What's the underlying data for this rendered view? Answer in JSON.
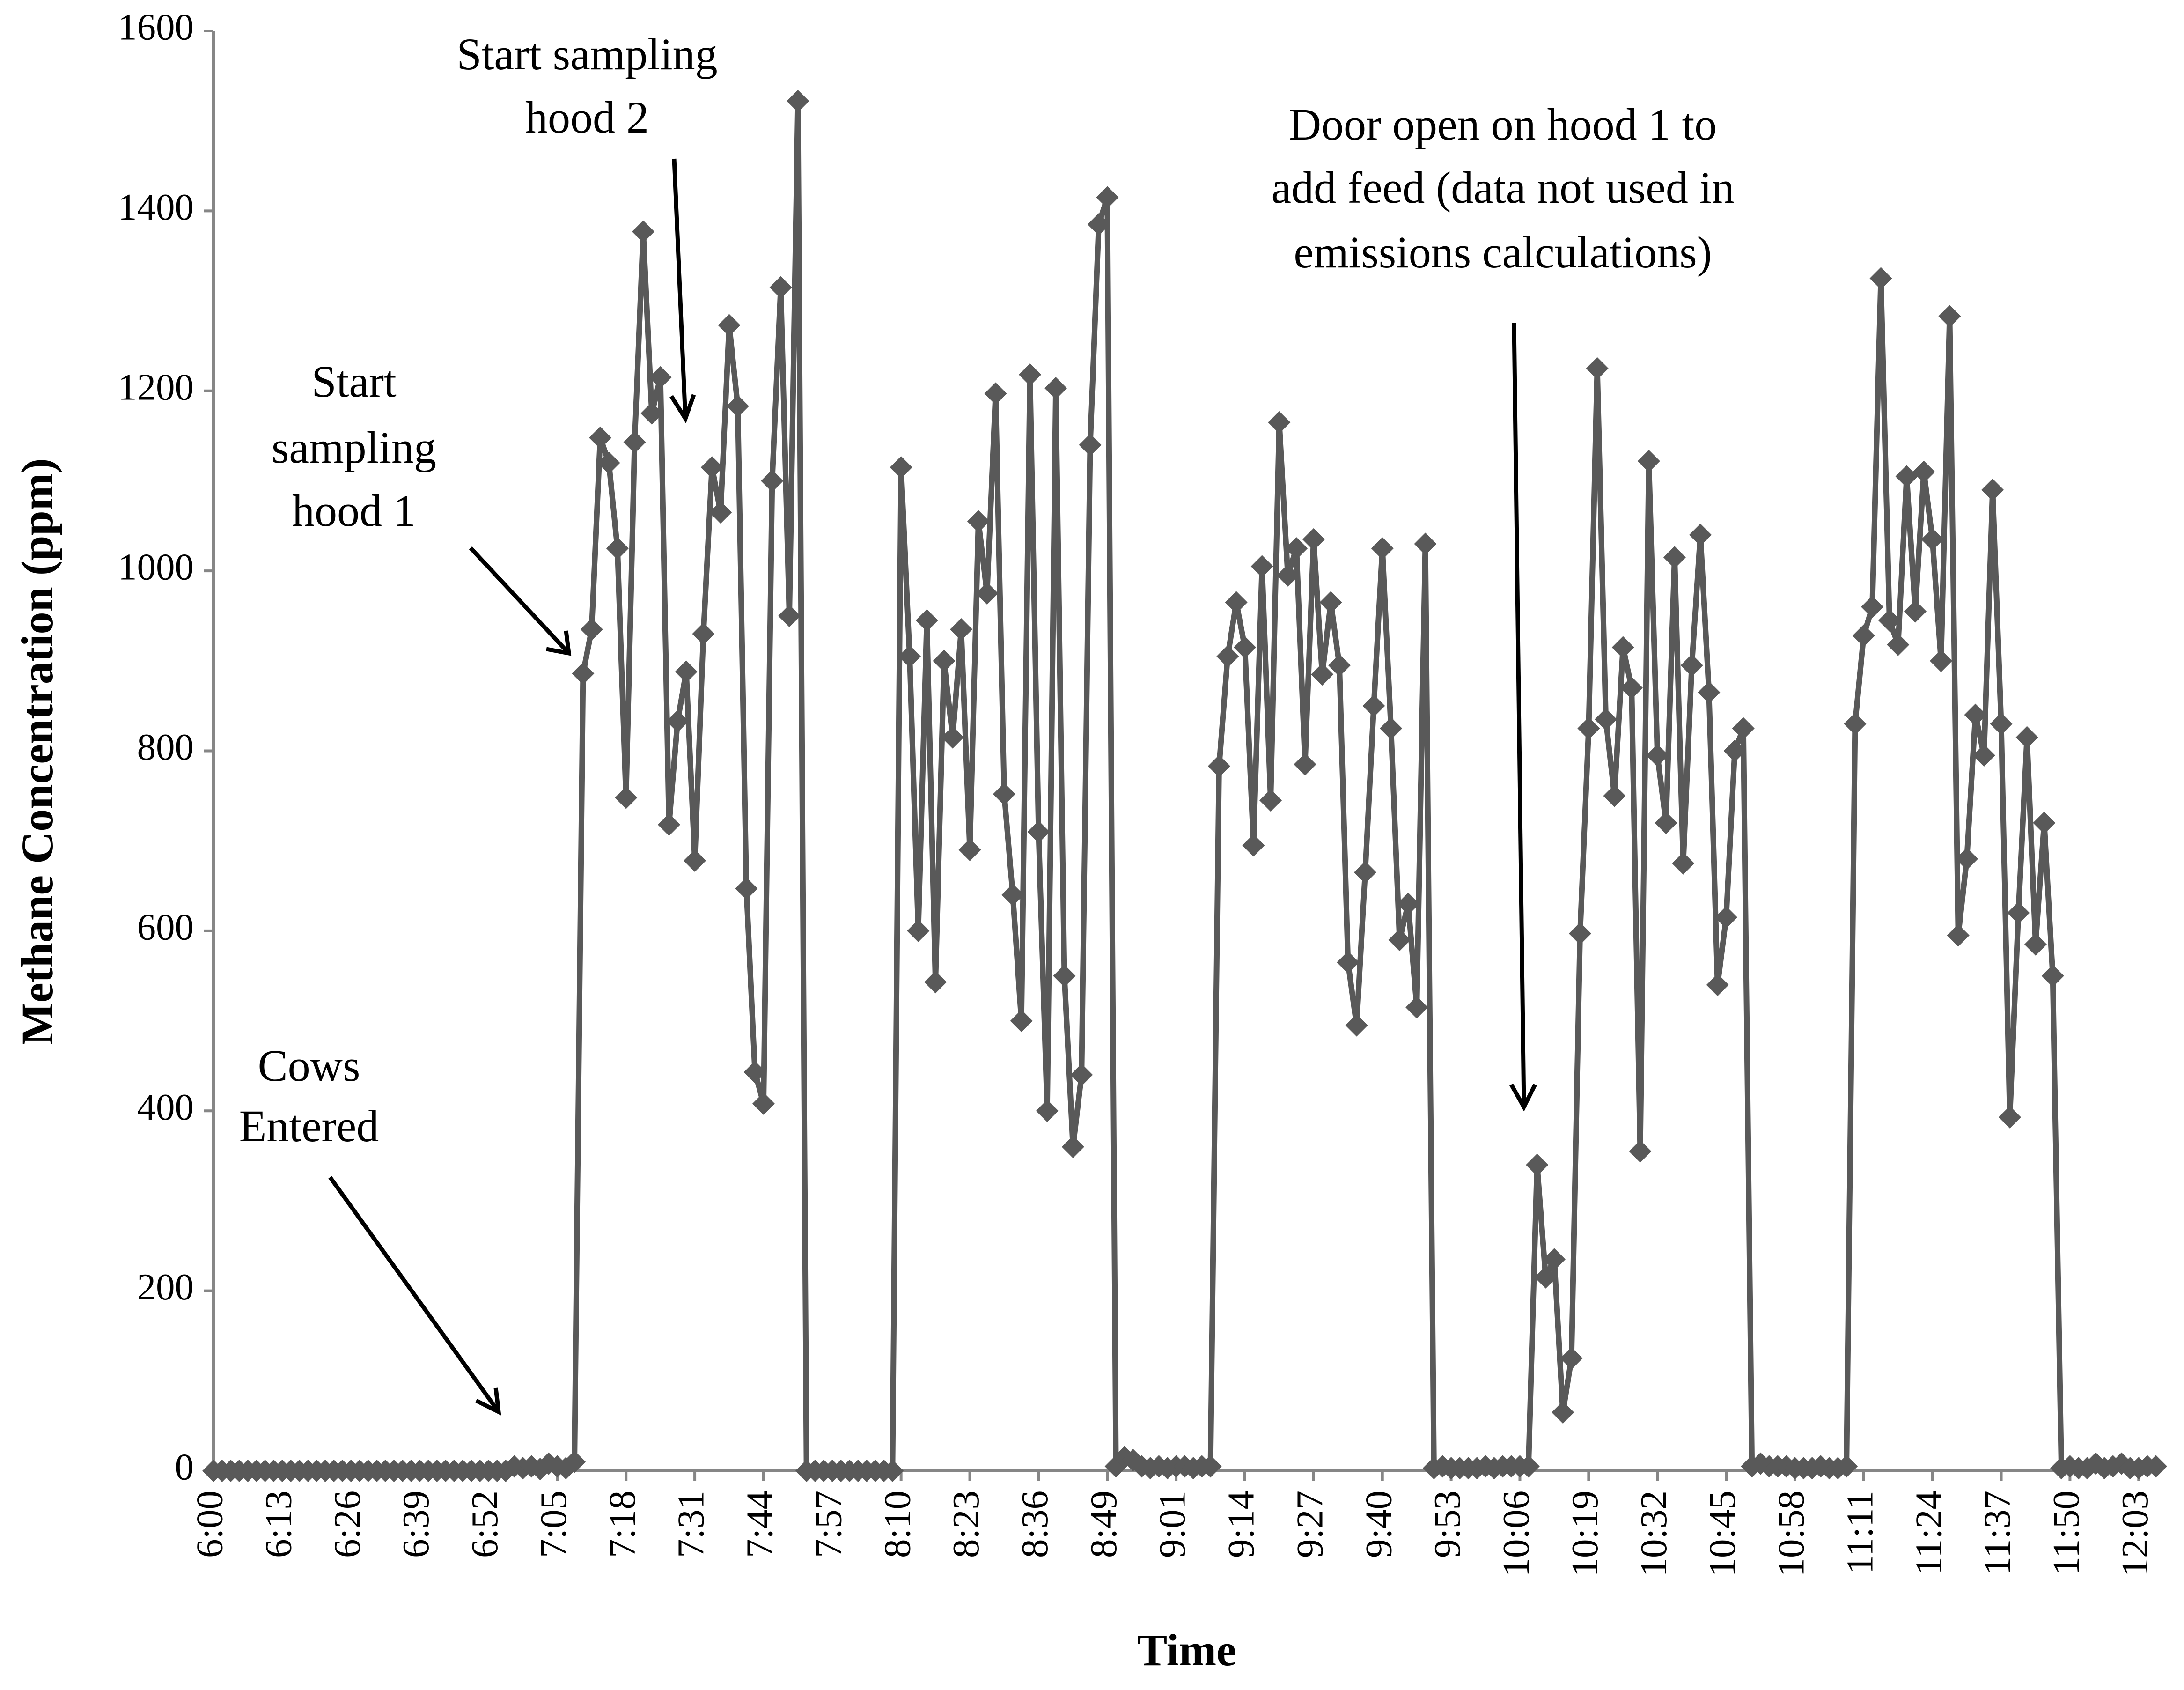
{
  "chart_data": {
    "type": "line",
    "x_label": "Time",
    "y_label": "Methane Concentration (ppm)",
    "ylim": [
      0,
      1600
    ],
    "yticks": [
      0,
      200,
      400,
      600,
      800,
      1000,
      1200,
      1400,
      1600
    ],
    "grid": false,
    "annotations": [
      {
        "lines": [
          "Start sampling",
          "hood 2"
        ]
      },
      {
        "lines": [
          "Start",
          "sampling",
          "hood 1"
        ]
      },
      {
        "lines": [
          "Cows",
          "Entered"
        ]
      },
      {
        "lines": [
          "Door open on hood 1 to",
          "add feed (data not used in",
          "emissions calculations)"
        ]
      }
    ],
    "categories": [
      "6:00",
      null,
      null,
      null,
      null,
      null,
      null,
      null,
      "6:13",
      null,
      null,
      null,
      null,
      null,
      null,
      null,
      "6:26",
      null,
      null,
      null,
      null,
      null,
      null,
      null,
      "6:39",
      null,
      null,
      null,
      null,
      null,
      null,
      null,
      "6:52",
      null,
      null,
      null,
      null,
      null,
      null,
      null,
      "7:05",
      null,
      null,
      null,
      null,
      null,
      null,
      null,
      "7:18",
      null,
      null,
      null,
      null,
      null,
      null,
      null,
      "7:31",
      null,
      null,
      null,
      null,
      null,
      null,
      null,
      "7:44",
      null,
      null,
      null,
      null,
      null,
      null,
      null,
      "7:57",
      null,
      null,
      null,
      null,
      null,
      null,
      null,
      "8:10",
      null,
      null,
      null,
      null,
      null,
      null,
      null,
      "8:23",
      null,
      null,
      null,
      null,
      null,
      null,
      null,
      "8:36",
      null,
      null,
      null,
      null,
      null,
      null,
      null,
      "8:49",
      null,
      null,
      null,
      null,
      null,
      null,
      null,
      "9:01",
      null,
      null,
      null,
      null,
      null,
      null,
      null,
      "9:14",
      null,
      null,
      null,
      null,
      null,
      null,
      null,
      "9:27",
      null,
      null,
      null,
      null,
      null,
      null,
      null,
      "9:40",
      null,
      null,
      null,
      null,
      null,
      null,
      null,
      "9:53",
      null,
      null,
      null,
      null,
      null,
      null,
      null,
      "10:06",
      null,
      null,
      null,
      null,
      null,
      null,
      null,
      "10:19",
      null,
      null,
      null,
      null,
      null,
      null,
      null,
      "10:32",
      null,
      null,
      null,
      null,
      null,
      null,
      null,
      "10:45",
      null,
      null,
      null,
      null,
      null,
      null,
      null,
      "10:58",
      null,
      null,
      null,
      null,
      null,
      null,
      null,
      "11:11",
      null,
      null,
      null,
      null,
      null,
      null,
      null,
      "11:24",
      null,
      null,
      null,
      null,
      null,
      null,
      null,
      "11:37",
      null,
      null,
      null,
      null,
      null,
      null,
      null,
      "11:50",
      null,
      null,
      null,
      null,
      null,
      null,
      null,
      "12:03",
      null,
      null
    ],
    "series": [
      {
        "color": "#595959",
        "values": [
          0,
          0,
          0,
          0,
          0,
          0,
          0,
          0,
          0,
          0,
          0,
          0,
          0,
          0,
          0,
          0,
          0,
          0,
          0,
          0,
          0,
          0,
          0,
          0,
          0,
          0,
          0,
          0,
          0,
          0,
          0,
          0,
          0,
          0,
          0,
          5,
          3,
          5,
          2,
          8,
          5,
          3,
          10,
          886,
          935,
          1148,
          1120,
          1025,
          748,
          1143,
          1377,
          1175,
          1215,
          718,
          833,
          888,
          678,
          930,
          1115,
          1065,
          1273,
          1183,
          647,
          443,
          408,
          1100,
          1315,
          950,
          1522,
          0,
          0,
          0,
          0,
          0,
          0,
          0,
          0,
          0,
          0,
          0,
          1115,
          905,
          600,
          945,
          543,
          900,
          815,
          935,
          690,
          1055,
          975,
          1197,
          752,
          640,
          500,
          1218,
          710,
          400,
          1203,
          550,
          360,
          440,
          1140,
          1385,
          1415,
          5,
          15,
          12,
          5,
          3,
          5,
          3,
          5,
          5,
          3,
          5,
          5,
          783,
          905,
          965,
          915,
          695,
          1005,
          745,
          1165,
          995,
          1025,
          785,
          1035,
          885,
          965,
          895,
          565,
          495,
          665,
          850,
          1025,
          825,
          590,
          630,
          515,
          1030,
          3,
          5,
          3,
          3,
          3,
          3,
          5,
          3,
          5,
          5,
          5,
          5,
          340,
          215,
          235,
          65,
          125,
          597,
          825,
          1225,
          835,
          750,
          915,
          870,
          355,
          1122,
          795,
          720,
          1015,
          675,
          895,
          1040,
          865,
          540,
          615,
          800,
          825,
          5,
          8,
          5,
          5,
          5,
          3,
          3,
          3,
          5,
          3,
          3,
          5,
          830,
          928,
          960,
          1325,
          945,
          918,
          1105,
          955,
          1110,
          1035,
          900,
          1283,
          595,
          680,
          840,
          795,
          1090,
          830,
          393,
          620,
          815,
          585,
          720,
          550,
          3,
          5,
          3,
          3,
          8,
          3,
          5,
          8,
          3,
          3,
          5,
          5
        ]
      }
    ]
  }
}
